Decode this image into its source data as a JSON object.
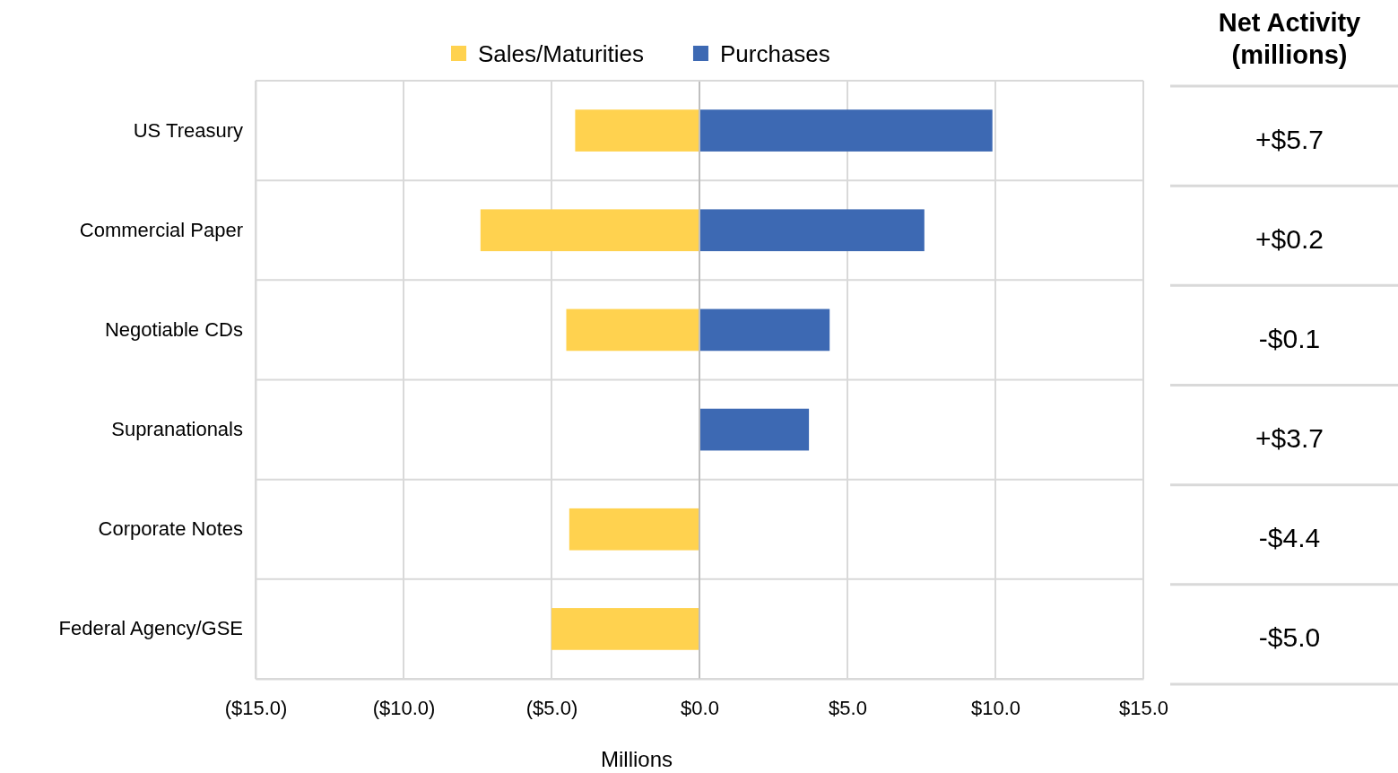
{
  "chart_data": {
    "type": "bar",
    "orientation": "horizontal",
    "stacked": true,
    "categories": [
      "US Treasury",
      "Commercial Paper",
      "Negotiable CDs",
      "Supranationals",
      "Corporate Notes",
      "Federal Agency/GSE"
    ],
    "series": [
      {
        "name": "Sales/Maturities",
        "color": "#ffd24f",
        "values": [
          -4.2,
          -7.4,
          -4.5,
          null,
          -4.4,
          -5.0
        ]
      },
      {
        "name": "Purchases",
        "color": "#3d69b3",
        "values": [
          9.9,
          7.6,
          4.4,
          3.7,
          null,
          null
        ]
      }
    ],
    "xlim": [
      -15,
      15
    ],
    "xticks": [
      {
        "value": -15,
        "label": "($15.0)"
      },
      {
        "value": -10,
        "label": "($10.0)"
      },
      {
        "value": -5,
        "label": "($5.0)"
      },
      {
        "value": 0,
        "label": "$0.0"
      },
      {
        "value": 5,
        "label": "$5.0"
      },
      {
        "value": 10,
        "label": "$10.0"
      },
      {
        "value": 15,
        "label": "$15.0"
      }
    ],
    "xlabel": "Millions",
    "annotations": [
      "Net Activity\n(millions)",
      "+$5.7",
      "+$0.2",
      "-$0.1",
      "+$3.7",
      "-$4.4",
      "-$5.0"
    ],
    "grid": true,
    "legend": "top"
  }
}
